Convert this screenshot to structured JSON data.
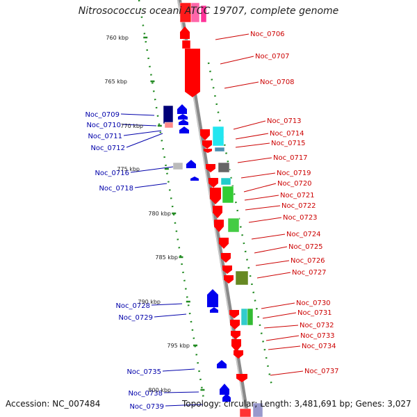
{
  "title": "Nitrosococcus oceani ATCC 19707, complete genome",
  "footer": {
    "accession": "Accession: NC_007484",
    "info": "Topology: circular; Length: 3,481,691 bp; Genes: 3,027"
  },
  "scale_labels": [
    "760 kbp",
    "765 kbp",
    "770 kbp",
    "775 kbp",
    "780 kbp",
    "785 kbp",
    "790 kbp",
    "795 kbp",
    "800 kbp"
  ],
  "genes_plus": [
    "Noc_0706",
    "Noc_0707",
    "Noc_0708",
    "Noc_0713",
    "Noc_0714",
    "Noc_0715",
    "Noc_0717",
    "Noc_0719",
    "Noc_0720",
    "Noc_0721",
    "Noc_0722",
    "Noc_0723",
    "Noc_0724",
    "Noc_0725",
    "Noc_0726",
    "Noc_0727",
    "Noc_0730",
    "Noc_0731",
    "Noc_0732",
    "Noc_0733",
    "Noc_0734",
    "Noc_0737"
  ],
  "genes_minus": [
    "Noc_0709",
    "Noc_0710",
    "Noc_0711",
    "Noc_0712",
    "Noc_0716",
    "Noc_0718",
    "Noc_0728",
    "Noc_0729",
    "Noc_0735",
    "Noc_0738",
    "Noc_0739"
  ],
  "colors": {
    "plus_label": "#cc0000",
    "minus_label": "#0000aa",
    "backbone": "#8a8a8a",
    "tick": "#228b22",
    "gene_red": "#ff0000",
    "gene_blue": "#0000ee"
  }
}
